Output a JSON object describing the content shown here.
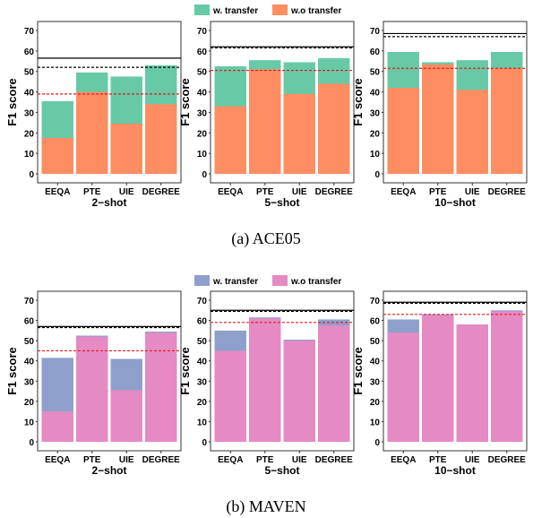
{
  "figure": {
    "captions": [
      "(a)  ACE05",
      "(b)  MAVEN"
    ]
  },
  "chart_data": [
    {
      "type": "bar",
      "group": "ACE05",
      "legend": [
        "w. transfer",
        "w.o transfer"
      ],
      "colors": {
        "transfer": "#67c9a6",
        "wo_transfer": "#fe8d62"
      },
      "ylabel": "F1 score",
      "yticks": [
        0,
        10,
        20,
        30,
        40,
        50,
        60,
        70
      ],
      "ylim": [
        0,
        70
      ],
      "grid": false,
      "panels": [
        {
          "title": "2−shot",
          "categories": [
            "EEQA",
            "PTE",
            "UIE",
            "DEGREE"
          ],
          "series": [
            {
              "name": "w. transfer",
              "values": [
                35.5,
                49.5,
                47.5,
                53.0
              ]
            },
            {
              "name": "w.o transfer",
              "values": [
                17.5,
                40.0,
                24.5,
                34.0
              ]
            }
          ],
          "hline_black_solid": 56.5,
          "hline_black_dashed": 52.0,
          "hline_red_dashed": 39.0
        },
        {
          "title": "5−shot",
          "categories": [
            "EEQA",
            "PTE",
            "UIE",
            "DEGREE"
          ],
          "series": [
            {
              "name": "w. transfer",
              "values": [
                52.5,
                55.5,
                54.5,
                56.5
              ]
            },
            {
              "name": "w.o transfer",
              "values": [
                33.0,
                51.0,
                39.0,
                44.0
              ]
            }
          ],
          "hline_black_solid": 62.0,
          "hline_black_dashed": 61.5,
          "hline_red_dashed": 50.5
        },
        {
          "title": "10−shot",
          "categories": [
            "EEQA",
            "PTE",
            "UIE",
            "DEGREE"
          ],
          "series": [
            {
              "name": "w. transfer",
              "values": [
                59.5,
                54.5,
                55.5,
                59.5
              ]
            },
            {
              "name": "w.o transfer",
              "values": [
                42.0,
                53.5,
                41.0,
                51.5
              ]
            }
          ],
          "hline_black_solid": 68.5,
          "hline_black_dashed": 67.0,
          "hline_red_dashed": 51.5
        }
      ]
    },
    {
      "type": "bar",
      "group": "MAVEN",
      "legend": [
        "w. transfer",
        "w.o transfer"
      ],
      "colors": {
        "transfer": "#8f9fcc",
        "wo_transfer": "#e68ac3"
      },
      "ylabel": "F1 score",
      "yticks": [
        0,
        10,
        20,
        30,
        40,
        50,
        60,
        70
      ],
      "ylim": [
        0,
        70
      ],
      "grid": false,
      "panels": [
        {
          "title": "2−shot",
          "categories": [
            "EEQA",
            "PTE",
            "UIE",
            "DEGREE"
          ],
          "series": [
            {
              "name": "w. transfer",
              "values": [
                41.5,
                52.5,
                41.0,
                54.5
              ]
            },
            {
              "name": "w.o transfer",
              "values": [
                15.0,
                52.0,
                25.5,
                54.0
              ]
            }
          ],
          "hline_black_solid": 57.0,
          "hline_black_dashed": 56.5,
          "hline_red_dashed": 45.0
        },
        {
          "title": "5−shot",
          "categories": [
            "EEQA",
            "PTE",
            "UIE",
            "DEGREE"
          ],
          "series": [
            {
              "name": "w. transfer",
              "values": [
                55.0,
                61.5,
                50.5,
                60.5
              ]
            },
            {
              "name": "w.o transfer",
              "values": [
                45.0,
                61.0,
                50.0,
                57.5
              ]
            }
          ],
          "hline_black_solid": 65.0,
          "hline_black_dashed": 64.5,
          "hline_red_dashed": 59.0
        },
        {
          "title": "10−shot",
          "categories": [
            "EEQA",
            "PTE",
            "UIE",
            "DEGREE"
          ],
          "series": [
            {
              "name": "w. transfer",
              "values": [
                60.5,
                63.0,
                58.0,
                65.0
              ]
            },
            {
              "name": "w.o transfer",
              "values": [
                54.0,
                62.5,
                58.0,
                64.5
              ]
            }
          ],
          "hline_black_solid": 69.0,
          "hline_black_dashed": 68.5,
          "hline_red_dashed": 63.0
        }
      ]
    }
  ]
}
